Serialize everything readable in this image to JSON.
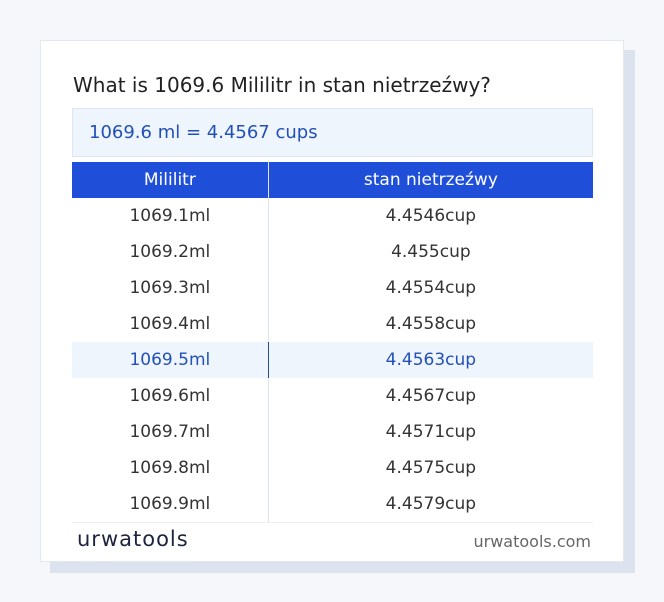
{
  "header": {
    "title": "What is 1069.6 Mililitr in stan nietrzeźwy?"
  },
  "result": "1069.6 ml = 4.4567 cups",
  "table": {
    "columns": [
      "Mililitr",
      "stan nietrzeźwy"
    ],
    "rows": [
      [
        "1069.1ml",
        "4.4546cup"
      ],
      [
        "1069.2ml",
        "4.455cup"
      ],
      [
        "1069.3ml",
        "4.4554cup"
      ],
      [
        "1069.4ml",
        "4.4558cup"
      ],
      [
        "1069.5ml",
        "4.4563cup"
      ],
      [
        "1069.6ml",
        "4.4567cup"
      ],
      [
        "1069.7ml",
        "4.4571cup"
      ],
      [
        "1069.8ml",
        "4.4575cup"
      ],
      [
        "1069.9ml",
        "4.4579cup"
      ]
    ],
    "highlighted_row": 4
  },
  "footer": {
    "logo": "urwatools",
    "site": "urwatools.com"
  }
}
